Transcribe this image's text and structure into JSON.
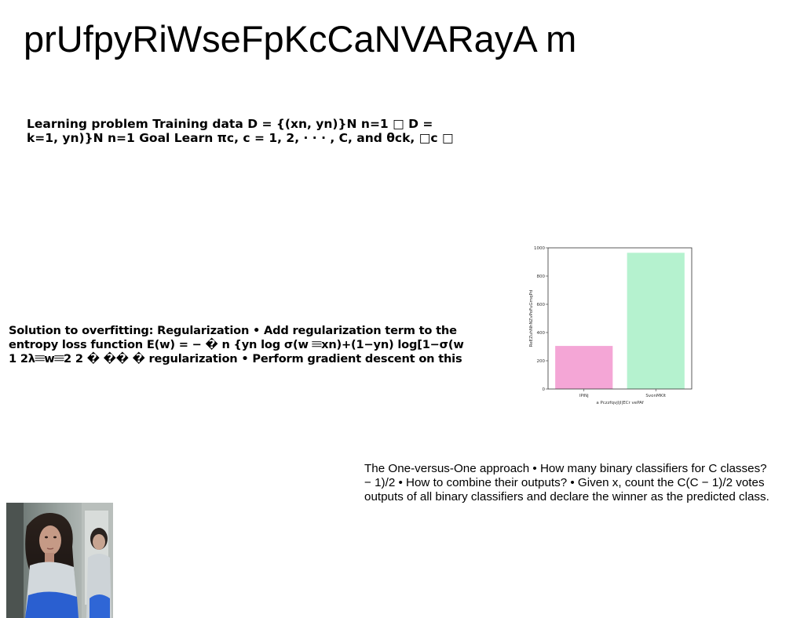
{
  "page": {
    "title": "prUfpyRiWseFpKcCaNVARayA m"
  },
  "learning_block": {
    "lines": [
      "Learning problem Training data D = {(xn, yn)}N n=1 □ D =",
      "k=1, yn)}N n=1 Goal Learn πc, c = 1, 2, · · · , C, and θck, □c □"
    ]
  },
  "regularization_block": {
    "lines": [
      "Solution to overfitting: Regularization • Add regularization term to the",
      "entropy loss function E(w) = − � n {yn log σ(w 𝄘xn)+(1−yn) log[1−σ(w",
      "1 2λ𝄘w𝄘2 2 � �� � regularization • Perform gradient descent on this"
    ]
  },
  "one_vs_one_block": {
    "lines": [
      "The One-versus-One approach • How many binary classifiers for C classes?",
      "− 1)/2 • How to combine their outputs? • Given x, count the C(C − 1)/2 votes",
      "outputs of all binary classifiers and declare the winner as the predicted class."
    ]
  },
  "chart_data": {
    "type": "bar",
    "categories": [
      "lPiNj",
      "SvonMKIt"
    ],
    "values": [
      305,
      965
    ],
    "colors": [
      "#f4a6d6",
      "#b5f2cf"
    ],
    "xlabel": "a Pczzfqvjljl|ECr vePAf",
    "ylabel": "ReEZuhNhNZvPoFuGmqPd",
    "ylim": [
      0,
      1000
    ],
    "yticks": [
      0,
      200,
      400,
      600,
      800,
      1000
    ],
    "grid": false
  },
  "photo": {
    "icon": "portrait-photo"
  }
}
